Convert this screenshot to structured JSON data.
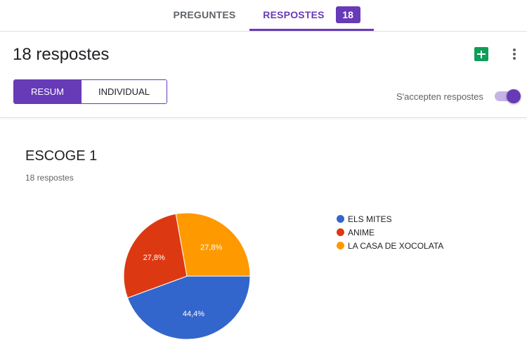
{
  "tabs": [
    {
      "label": "PREGUNTES"
    },
    {
      "label": "RESPOSTES",
      "badge": "18"
    }
  ],
  "header": {
    "title": "18 respostes",
    "sheets_icon": "google-sheets-icon",
    "more_icon": "more-vert-icon"
  },
  "view_toggle": {
    "summary_label": "RESUM",
    "individual_label": "INDIVIDUAL",
    "selected": "RESUM"
  },
  "accepting": {
    "label": "S'accepten respostes",
    "on": true
  },
  "question": {
    "title": "ESCOGE 1",
    "count": "18 respostes"
  },
  "colors": {
    "accent": "#673ab7",
    "blue": "#3366cc",
    "red": "#dc3912",
    "orange": "#ff9900"
  },
  "chart_data": {
    "type": "pie",
    "labels": [
      "ELS MITES",
      "ANIME",
      "LA CASA DE XOCOLATA"
    ],
    "values": [
      44.4,
      27.8,
      27.8
    ],
    "display_labels": [
      "44,4%",
      "27,8%",
      "27,8%"
    ],
    "colors": [
      "#3366cc",
      "#dc3912",
      "#ff9900"
    ],
    "legend_position": "right"
  }
}
